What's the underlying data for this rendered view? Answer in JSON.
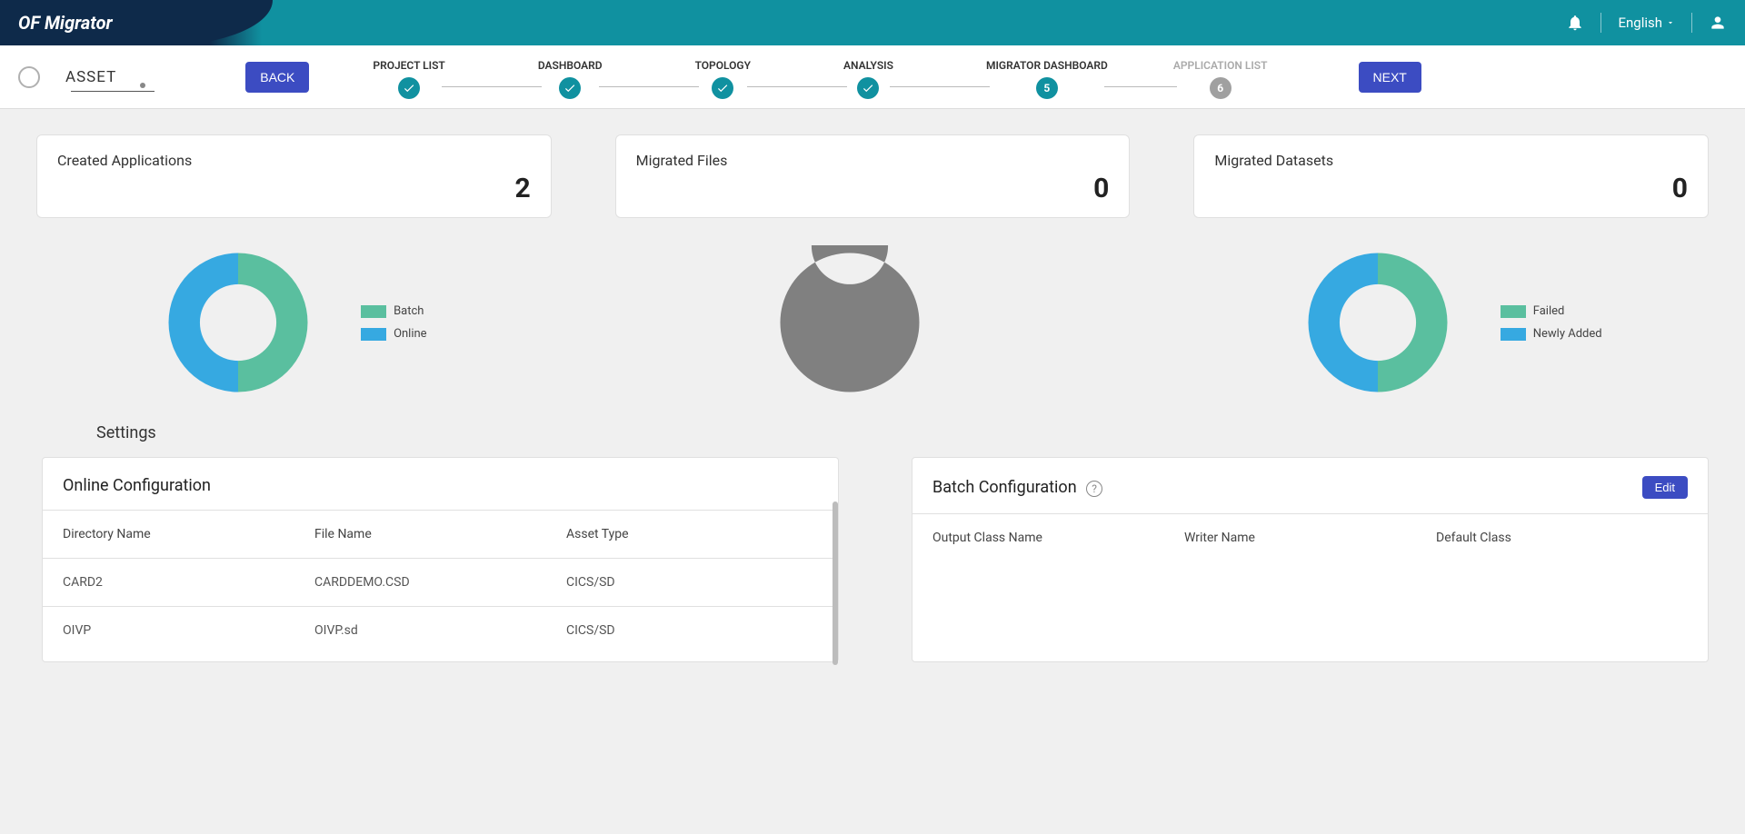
{
  "header": {
    "product_name": "OF Migrator",
    "language": "English"
  },
  "nav": {
    "asset_label": "ASSET",
    "back_label": "BACK",
    "next_label": "NEXT",
    "steps": [
      {
        "label": "PROJECT LIST",
        "state": "done"
      },
      {
        "label": "DASHBOARD",
        "state": "done"
      },
      {
        "label": "TOPOLOGY",
        "state": "done"
      },
      {
        "label": "ANALYSIS",
        "state": "done"
      },
      {
        "label": "MIGRATOR DASHBOARD",
        "state": "current",
        "num": "5"
      },
      {
        "label": "APPLICATION LIST",
        "state": "disabled",
        "num": "6"
      }
    ]
  },
  "stats": {
    "created_apps": {
      "title": "Created Applications",
      "value": "2"
    },
    "migrated_files": {
      "title": "Migrated Files",
      "value": "0"
    },
    "migrated_datasets": {
      "title": "Migrated Datasets",
      "value": "0"
    }
  },
  "charts": {
    "apps": {
      "type": "donut",
      "slices": [
        {
          "label": "Batch",
          "value": 50,
          "color": "#5abf9f"
        },
        {
          "label": "Online",
          "value": 50,
          "color": "#36a9e1"
        }
      ],
      "inner_ratio": 0.55,
      "background": "transparent"
    },
    "files": {
      "type": "donut",
      "slices": [
        {
          "label": "",
          "value": 100,
          "color": "#808080"
        }
      ],
      "inner_ratio": 0.55
    },
    "datasets": {
      "type": "donut",
      "slices": [
        {
          "label": "Failed",
          "value": 50,
          "color": "#5abf9f"
        },
        {
          "label": "Newly Added",
          "value": 50,
          "color": "#36a9e1"
        }
      ],
      "inner_ratio": 0.55
    }
  },
  "settings": {
    "heading": "Settings",
    "online": {
      "title": "Online Configuration",
      "columns": [
        "Directory Name",
        "File Name",
        "Asset Type"
      ],
      "rows": [
        [
          "CARD2",
          "CARDDEMO.CSD",
          "CICS/SD"
        ],
        [
          "OIVP",
          "OIVP.sd",
          "CICS/SD"
        ]
      ]
    },
    "batch": {
      "title": "Batch Configuration",
      "edit_label": "Edit",
      "columns": [
        "Output Class Name",
        "Writer Name",
        "Default Class"
      ],
      "rows": []
    }
  },
  "colors": {
    "primary_button": "#3c4cc2",
    "teal": "#1091a0",
    "header_dark": "#0e2a4a"
  }
}
